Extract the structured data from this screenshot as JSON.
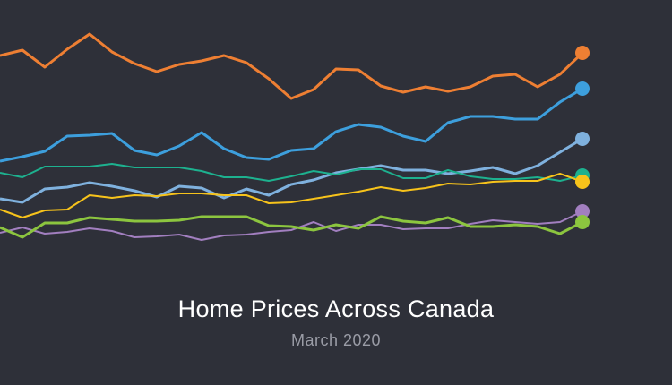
{
  "chart_data": {
    "type": "line",
    "title": "Home Prices Across Canada",
    "subtitle": "March 2020",
    "xlabel": "",
    "ylabel": "",
    "ylim": [
      0,
      300
    ],
    "grid": false,
    "legend": "none",
    "series": [
      {
        "name": "orange",
        "color": "#ee7f33",
        "values": [
          238,
          244,
          225,
          245,
          262,
          242,
          229,
          220,
          228,
          232,
          238,
          230,
          212,
          190,
          200,
          223,
          222,
          204,
          197,
          203,
          198,
          203,
          215,
          217,
          203,
          217,
          241
        ]
      },
      {
        "name": "blue",
        "color": "#3d9fdd",
        "values": [
          120,
          125,
          131,
          148,
          149,
          151,
          132,
          127,
          137,
          152,
          134,
          124,
          122,
          132,
          134,
          153,
          161,
          158,
          148,
          142,
          163,
          170,
          170,
          167,
          167,
          186,
          201
        ]
      },
      {
        "name": "light-blue",
        "color": "#7fb1de",
        "values": [
          78,
          74,
          89,
          91,
          96,
          92,
          87,
          80,
          92,
          90,
          79,
          89,
          82,
          94,
          99,
          107,
          111,
          115,
          110,
          110,
          106,
          109,
          113,
          106,
          115,
          130,
          145
        ]
      },
      {
        "name": "teal",
        "color": "#1db18f",
        "values": [
          107,
          102,
          114,
          114,
          114,
          117,
          113,
          113,
          113,
          109,
          102,
          102,
          98,
          103,
          109,
          105,
          111,
          111,
          101,
          101,
          110,
          103,
          100,
          100,
          102,
          98,
          104
        ]
      },
      {
        "name": "yellow",
        "color": "#f7c31b",
        "values": [
          66,
          57,
          65,
          66,
          82,
          79,
          82,
          81,
          84,
          84,
          82,
          82,
          73,
          74,
          78,
          82,
          86,
          91,
          87,
          90,
          95,
          94,
          97,
          98,
          98,
          106,
          97
        ]
      },
      {
        "name": "purple",
        "color": "#a27fc0",
        "values": [
          40,
          46,
          39,
          41,
          45,
          42,
          35,
          36,
          38,
          32,
          37,
          38,
          41,
          43,
          52,
          42,
          49,
          49,
          44,
          45,
          45,
          50,
          54,
          52,
          50,
          52,
          64
        ]
      },
      {
        "name": "green",
        "color": "#8cc53f",
        "values": [
          46,
          35,
          51,
          51,
          57,
          55,
          53,
          53,
          54,
          58,
          58,
          58,
          48,
          47,
          43,
          49,
          45,
          58,
          53,
          51,
          57,
          47,
          47,
          49,
          47,
          39,
          52
        ]
      }
    ]
  }
}
